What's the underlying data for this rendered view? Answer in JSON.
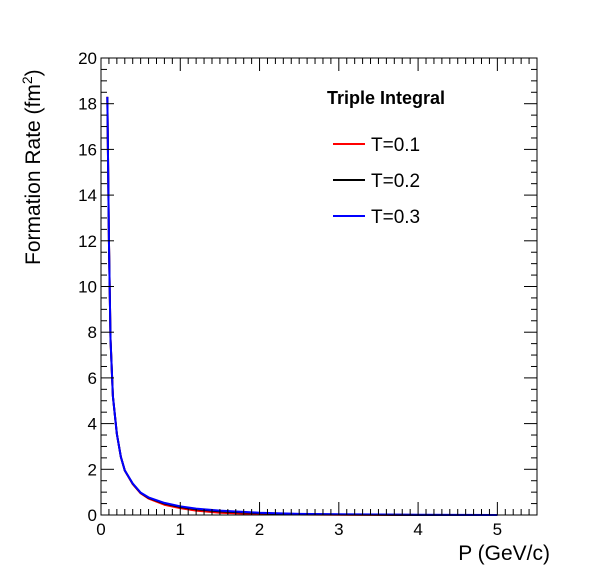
{
  "chart_data": {
    "type": "line",
    "title": "",
    "xlabel": "P (GeV/c)",
    "ylabel_main": "Formation Rate (fm",
    "ylabel_sup": "2",
    "ylabel_close": ")",
    "xlim": [
      0,
      5.5
    ],
    "ylim": [
      0,
      20
    ],
    "x_ticks": [
      0,
      1,
      2,
      3,
      4,
      5
    ],
    "x_tick_labels": [
      "0",
      "1",
      "2",
      "3",
      "4",
      "5"
    ],
    "y_ticks": [
      0,
      2,
      4,
      6,
      8,
      10,
      12,
      14,
      16,
      18,
      20
    ],
    "y_tick_labels": [
      "0",
      "2",
      "4",
      "6",
      "8",
      "10",
      "12",
      "14",
      "16",
      "18",
      "20"
    ],
    "grid": false,
    "legend": {
      "title": "Triple Integral",
      "position": "top-right",
      "entries": [
        "T=0.1",
        "T=0.2",
        "T=0.3"
      ]
    },
    "x": [
      0.08,
      0.1,
      0.12,
      0.15,
      0.2,
      0.25,
      0.3,
      0.4,
      0.5,
      0.6,
      0.8,
      1.0,
      1.2,
      1.5,
      2.0,
      2.5,
      3.0,
      4.0,
      5.0
    ],
    "series": [
      {
        "name": "T=0.1",
        "color": "#ff0000",
        "values": [
          18.3,
          12.0,
          7.7,
          5.2,
          3.55,
          2.55,
          1.95,
          1.35,
          0.95,
          0.72,
          0.45,
          0.3,
          0.19,
          0.1,
          0.04,
          0.02,
          0.01,
          0.0,
          0.0
        ]
      },
      {
        "name": "T=0.2",
        "color": "#000000",
        "values": [
          18.3,
          12.0,
          7.7,
          5.2,
          3.55,
          2.55,
          1.95,
          1.37,
          0.97,
          0.75,
          0.5,
          0.35,
          0.25,
          0.16,
          0.08,
          0.04,
          0.02,
          0.0,
          0.0
        ]
      },
      {
        "name": "T=0.3",
        "color": "#0000ff",
        "values": [
          18.3,
          12.0,
          7.7,
          5.2,
          3.55,
          2.55,
          1.95,
          1.38,
          0.98,
          0.77,
          0.53,
          0.38,
          0.28,
          0.19,
          0.1,
          0.05,
          0.03,
          0.01,
          0.0
        ]
      }
    ]
  }
}
